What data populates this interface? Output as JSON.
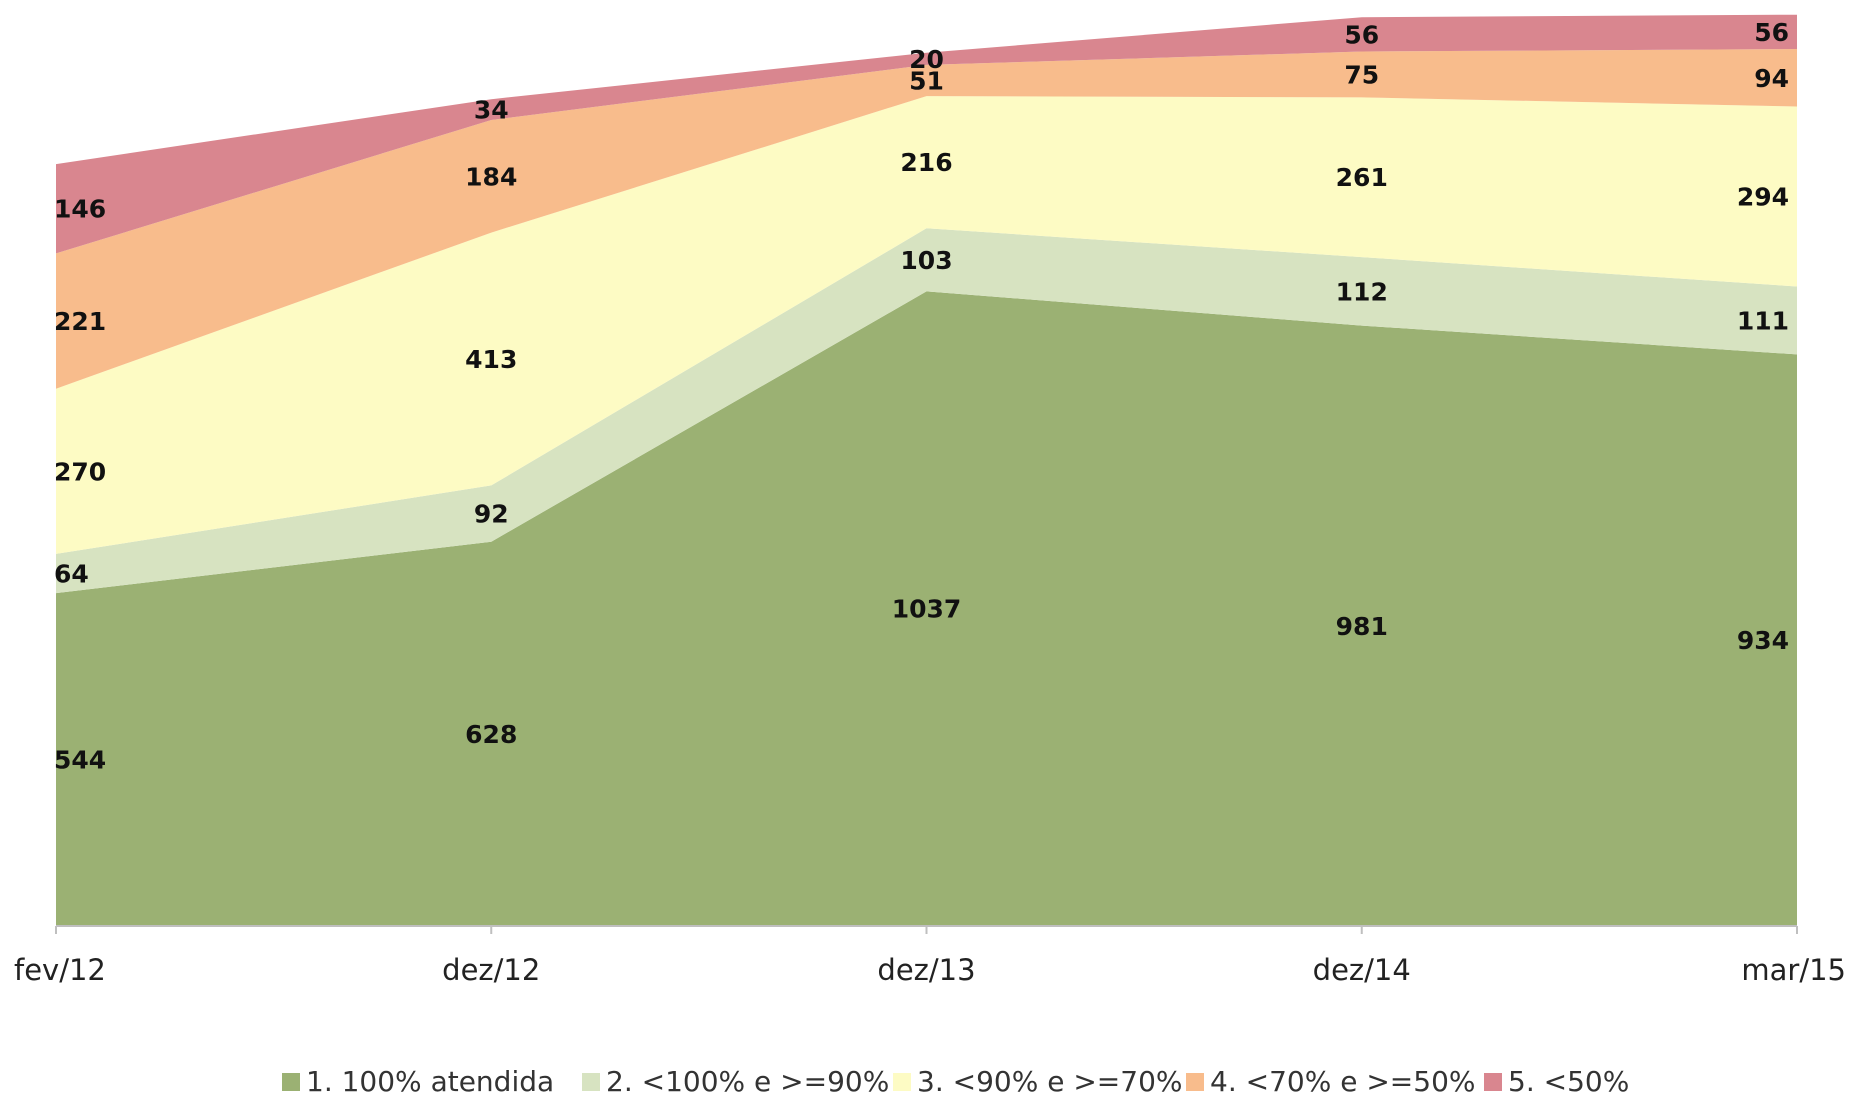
{
  "chart_data": {
    "type": "area",
    "stacked": true,
    "grid": false,
    "legend_position": "bottom",
    "title": "",
    "xlabel": "",
    "ylabel": "",
    "categories": [
      "fev/12",
      "dez/12",
      "dez/13",
      "dez/14",
      "mar/15"
    ],
    "ylim": [
      0,
      1500
    ],
    "series": [
      {
        "name": "1. 100% atendida",
        "color": "#9BB173",
        "values": [
          544,
          628,
          1037,
          981,
          934
        ]
      },
      {
        "name": "2. <100% e >=90%",
        "color": "#D7E3C1",
        "values": [
          64,
          92,
          103,
          112,
          111
        ]
      },
      {
        "name": "3. <90% e >=70%",
        "color": "#FDFBC4",
        "values": [
          270,
          413,
          216,
          261,
          294
        ]
      },
      {
        "name": "4. <70% e >=50%",
        "color": "#F8BC8C",
        "values": [
          221,
          184,
          51,
          75,
          94
        ]
      },
      {
        "name": "5. <50%",
        "color": "#D9868F",
        "values": [
          146,
          34,
          20,
          56,
          56
        ]
      }
    ]
  }
}
